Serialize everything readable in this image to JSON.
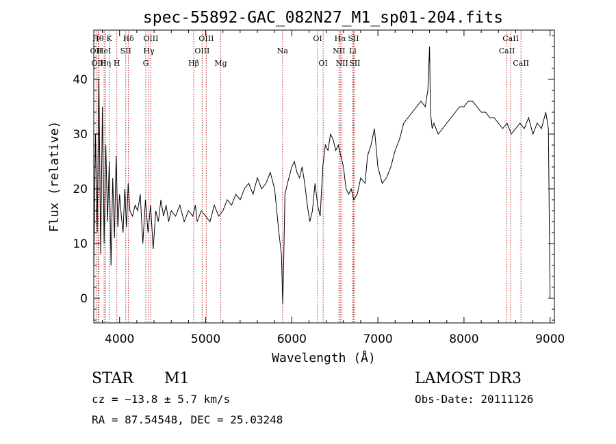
{
  "chart_data": {
    "type": "line",
    "title": "spec-55892-GAC_082N27_M1_sp01-204.fits",
    "xlabel": "Wavelength (Å)",
    "ylabel": "Flux (relative)",
    "xlim": [
      3700,
      9050
    ],
    "ylim": [
      -4.5,
      49
    ],
    "xticks": [
      4000,
      5000,
      6000,
      7000,
      8000,
      9000
    ],
    "yticks": [
      0,
      10,
      20,
      30,
      40
    ],
    "grid": false,
    "line_colors": {
      "spectrum": "#000000",
      "markers": "#b22222"
    },
    "series": [
      {
        "x": [
          3700,
          3720,
          3740,
          3760,
          3780,
          3800,
          3820,
          3840,
          3860,
          3880,
          3900,
          3920,
          3940,
          3960,
          3980,
          4000,
          4020,
          4040,
          4060,
          4080,
          4100,
          4120,
          4150,
          4180,
          4210,
          4240,
          4270,
          4300,
          4330,
          4360,
          4390,
          4420,
          4450,
          4480,
          4510,
          4540,
          4570,
          4600,
          4650,
          4700,
          4750,
          4800,
          4850,
          4880,
          4900,
          4950,
          5000,
          5050,
          5100,
          5150,
          5200,
          5250,
          5300,
          5350,
          5400,
          5450,
          5500,
          5550,
          5600,
          5650,
          5700,
          5750,
          5800,
          5850,
          5880,
          5895,
          5905,
          5920,
          5950,
          6000,
          6030,
          6060,
          6090,
          6120,
          6150,
          6180,
          6210,
          6240,
          6270,
          6300,
          6330,
          6360,
          6390,
          6420,
          6450,
          6480,
          6510,
          6540,
          6570,
          6600,
          6630,
          6660,
          6690,
          6720,
          6760,
          6800,
          6850,
          6880,
          6920,
          6960,
          7000,
          7050,
          7100,
          7150,
          7200,
          7250,
          7300,
          7350,
          7400,
          7450,
          7500,
          7550,
          7580,
          7600,
          7610,
          7630,
          7650,
          7700,
          7750,
          7800,
          7850,
          7900,
          7950,
          8000,
          8050,
          8100,
          8150,
          8200,
          8250,
          8300,
          8350,
          8400,
          8450,
          8500,
          8550,
          8600,
          8650,
          8700,
          8750,
          8800,
          8850,
          8900,
          8950,
          8980,
          9000
        ],
        "y": [
          5,
          30,
          12,
          40,
          8,
          35,
          10,
          28,
          14,
          25,
          6,
          22,
          11,
          26,
          13,
          19,
          15,
          12,
          20,
          13,
          21,
          16,
          15,
          17,
          16,
          19,
          10,
          18,
          12,
          17,
          9,
          16,
          14,
          18,
          15,
          17,
          14,
          16,
          15,
          17,
          14,
          16,
          15,
          17,
          14,
          16,
          15,
          14,
          17,
          15,
          16,
          18,
          17,
          19,
          18,
          20,
          21,
          19,
          22,
          20,
          21,
          23,
          20,
          12,
          8,
          -1,
          6,
          19,
          21,
          24,
          25,
          23,
          22,
          24,
          21,
          17,
          14,
          16,
          21,
          17,
          15,
          24,
          28,
          27,
          30,
          29,
          27,
          28,
          26,
          24,
          20,
          19,
          20,
          18,
          19,
          22,
          21,
          26,
          28,
          31,
          24,
          21,
          22,
          24,
          27,
          29,
          32,
          33,
          34,
          35,
          36,
          35,
          38,
          46,
          34,
          31,
          32,
          30,
          31,
          32,
          33,
          34,
          35,
          35,
          36,
          36,
          35,
          34,
          34,
          33,
          33,
          32,
          31,
          32,
          30,
          31,
          32,
          31,
          33,
          30,
          32,
          31,
          34,
          31,
          0
        ]
      }
    ],
    "line_markers": [
      {
        "label": "OII",
        "x": 3727,
        "row": 1
      },
      {
        "label": "Hθ",
        "x": 3750,
        "row": 0
      },
      {
        "label": "OIII",
        "x": 3760,
        "row": 2
      },
      {
        "label": "HeI",
        "x": 3820,
        "row": 1
      },
      {
        "label": "K",
        "x": 3880,
        "row": 0
      },
      {
        "label": "Hη",
        "x": 3835,
        "row": 2
      },
      {
        "label": "SII",
        "x": 4072,
        "row": 1
      },
      {
        "label": "H",
        "x": 3968,
        "row": 2
      },
      {
        "label": "Hδ",
        "x": 4102,
        "row": 0
      },
      {
        "label": "OIII",
        "x": 4363,
        "row": 0
      },
      {
        "label": "Hγ",
        "x": 4340,
        "row": 1
      },
      {
        "label": "G",
        "x": 4304,
        "row": 2
      },
      {
        "label": "Hβ",
        "x": 4861,
        "row": 2
      },
      {
        "label": "OIII",
        "x": 5007,
        "row": 0
      },
      {
        "label": "OIII",
        "x": 4959,
        "row": 1
      },
      {
        "label": "Mg",
        "x": 5175,
        "row": 2
      },
      {
        "label": "Na",
        "x": 5893,
        "row": 1
      },
      {
        "label": "OI",
        "x": 6300,
        "row": 0
      },
      {
        "label": "OI",
        "x": 6364,
        "row": 2
      },
      {
        "label": "Hα",
        "x": 6563,
        "row": 0
      },
      {
        "label": "NII",
        "x": 6548,
        "row": 1
      },
      {
        "label": "NII",
        "x": 6583,
        "row": 2
      },
      {
        "label": "SII",
        "x": 6717,
        "row": 0
      },
      {
        "label": "Li",
        "x": 6708,
        "row": 1
      },
      {
        "label": "SII",
        "x": 6731,
        "row": 2
      },
      {
        "label": "CaII",
        "x": 8542,
        "row": 0
      },
      {
        "label": "CaII",
        "x": 8498,
        "row": 1
      },
      {
        "label": "CaII",
        "x": 8662,
        "row": 2
      }
    ]
  },
  "info": {
    "object_class": "STAR",
    "subclass": "M1",
    "survey": "LAMOST DR3",
    "cz": "cz = −13.8 ± 5.7 km/s",
    "obs_date": "Obs-Date: 20111126",
    "coords": "RA =  87.54548, DEC =  25.03248"
  }
}
